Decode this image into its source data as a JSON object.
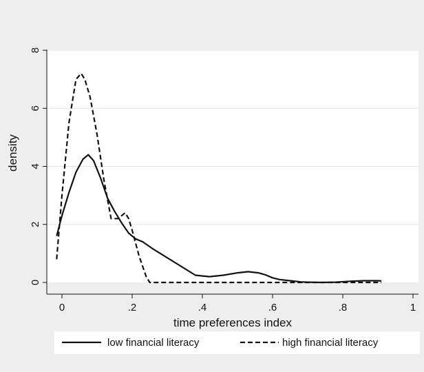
{
  "colors": {
    "background": "#eeeeee",
    "plot_background": "#ffffff",
    "grid": "#e2e2e2",
    "axis": "#111111",
    "series": "#111111"
  },
  "chart_data": {
    "type": "line",
    "title": "",
    "xlabel": "time preferences index",
    "ylabel": "density",
    "xlim": [
      -0.02,
      1.0
    ],
    "ylim": [
      0,
      8
    ],
    "x_ticks": [
      0,
      0.2,
      0.4,
      0.6,
      0.8,
      1.0
    ],
    "x_tick_labels": [
      "0",
      ".2",
      ".4",
      ".6",
      ".8",
      "1"
    ],
    "y_ticks": [
      0,
      2,
      4,
      6,
      8
    ],
    "y_tick_labels": [
      "0",
      "2",
      "4",
      "6",
      "8"
    ],
    "grid": "horizontal",
    "legend_position": "bottom",
    "series": [
      {
        "name": "low financial literacy",
        "style": "solid",
        "x": [
          -0.015,
          0.0,
          0.02,
          0.04,
          0.06,
          0.075,
          0.09,
          0.11,
          0.13,
          0.15,
          0.17,
          0.19,
          0.21,
          0.23,
          0.26,
          0.3,
          0.34,
          0.38,
          0.42,
          0.46,
          0.5,
          0.53,
          0.56,
          0.58,
          0.6,
          0.62,
          0.65,
          0.68,
          0.7,
          0.74,
          0.78,
          0.82,
          0.86,
          0.9,
          0.91
        ],
        "y": [
          1.6,
          2.3,
          3.1,
          3.8,
          4.25,
          4.4,
          4.2,
          3.6,
          2.9,
          2.45,
          2.05,
          1.7,
          1.5,
          1.4,
          1.15,
          0.85,
          0.55,
          0.25,
          0.2,
          0.25,
          0.33,
          0.37,
          0.33,
          0.26,
          0.16,
          0.1,
          0.06,
          0.02,
          0.01,
          0.0,
          0.01,
          0.04,
          0.06,
          0.06,
          0.05
        ]
      },
      {
        "name": "high financial literacy",
        "style": "dashed",
        "x": [
          -0.015,
          0.0,
          0.02,
          0.04,
          0.055,
          0.065,
          0.08,
          0.1,
          0.12,
          0.14,
          0.16,
          0.18,
          0.19,
          0.2,
          0.22,
          0.24,
          0.25,
          0.27,
          0.3,
          0.4,
          0.5,
          0.6,
          0.7,
          0.8,
          0.91
        ],
        "y": [
          0.8,
          3.0,
          5.5,
          7.0,
          7.2,
          7.0,
          6.4,
          5.1,
          3.5,
          2.2,
          2.2,
          2.4,
          2.2,
          1.8,
          0.9,
          0.2,
          0.0,
          0.0,
          0.0,
          0.0,
          0.0,
          0.0,
          0.0,
          0.0,
          0.0
        ]
      }
    ]
  }
}
